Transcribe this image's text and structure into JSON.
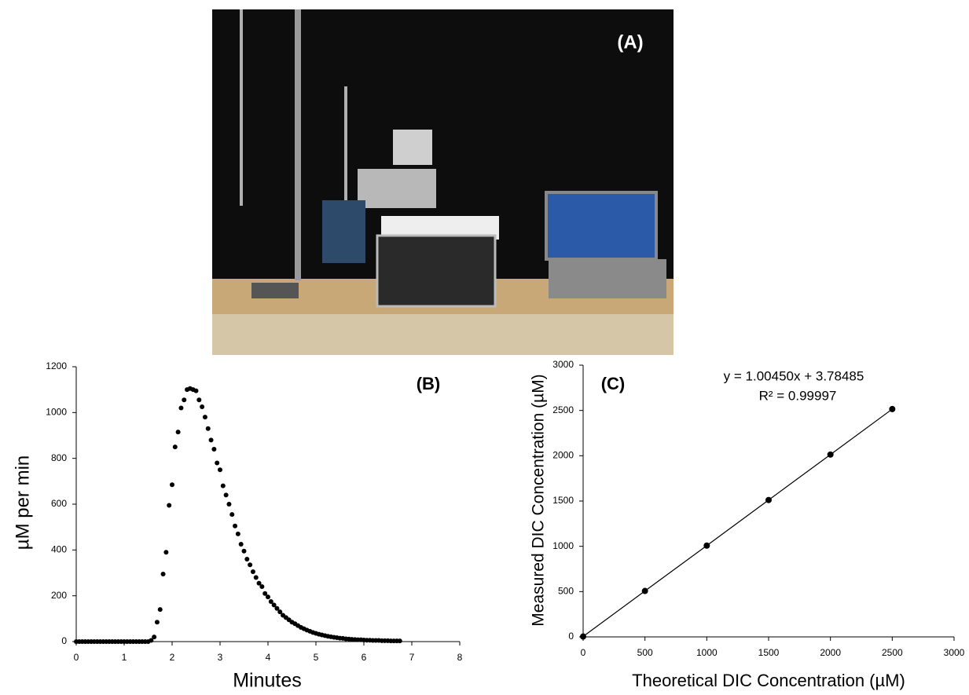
{
  "photo_label": "(A)",
  "chart_data": [
    {
      "type": "scatter",
      "annotation": "(B)",
      "xlabel": "Minutes",
      "ylabel": "µM per min",
      "color": "#000000",
      "line": false,
      "xlim": [
        0,
        8
      ],
      "xticks": [
        0,
        1,
        2,
        3,
        4,
        5,
        6,
        7,
        8
      ],
      "ylim": [
        0,
        1200
      ],
      "yticks": [
        0,
        200,
        400,
        600,
        800,
        1000,
        1200
      ],
      "x": [
        0,
        0.0625,
        0.125,
        0.1875,
        0.25,
        0.3125,
        0.375,
        0.4375,
        0.5,
        0.5625,
        0.625,
        0.6875,
        0.75,
        0.8125,
        0.875,
        0.9375,
        1,
        1.0625,
        1.125,
        1.1875,
        1.25,
        1.3125,
        1.375,
        1.4375,
        1.5,
        1.5625,
        1.625,
        1.6875,
        1.75,
        1.8125,
        1.875,
        1.9375,
        2,
        2.0625,
        2.125,
        2.1875,
        2.25,
        2.3125,
        2.375,
        2.4375,
        2.5,
        2.5625,
        2.625,
        2.6875,
        2.75,
        2.8125,
        2.875,
        2.9375,
        3,
        3.0625,
        3.125,
        3.1875,
        3.25,
        3.3125,
        3.375,
        3.4375,
        3.5,
        3.5625,
        3.625,
        3.6875,
        3.75,
        3.8125,
        3.875,
        3.9375,
        4,
        4.0625,
        4.125,
        4.1875,
        4.25,
        4.3125,
        4.375,
        4.4375,
        4.5,
        4.5625,
        4.625,
        4.6875,
        4.75,
        4.8125,
        4.875,
        4.9375,
        5,
        5.0625,
        5.125,
        5.1875,
        5.25,
        5.3125,
        5.375,
        5.4375,
        5.5,
        5.5625,
        5.625,
        5.6875,
        5.75,
        5.8125,
        5.875,
        5.9375,
        6,
        6.0625,
        6.125,
        6.1875,
        6.25,
        6.3125,
        6.375,
        6.4375,
        6.5,
        6.5625,
        6.625,
        6.6875,
        6.75
      ],
      "values": [
        0,
        0,
        0,
        0,
        0,
        0,
        0,
        0,
        0,
        0,
        0,
        0,
        0,
        0,
        0,
        0,
        0,
        0,
        0,
        0,
        0,
        0,
        0,
        0,
        0,
        5,
        20,
        85,
        140,
        295,
        390,
        595,
        685,
        850,
        915,
        1020,
        1055,
        1100,
        1105,
        1100,
        1095,
        1055,
        1025,
        980,
        930,
        880,
        840,
        780,
        750,
        680,
        640,
        600,
        555,
        505,
        470,
        425,
        395,
        360,
        335,
        305,
        280,
        255,
        240,
        210,
        195,
        175,
        160,
        145,
        130,
        115,
        105,
        95,
        85,
        78,
        70,
        62,
        56,
        50,
        45,
        40,
        36,
        32,
        29,
        26,
        23,
        21,
        19,
        17,
        15,
        14,
        12,
        11,
        10,
        9,
        8,
        8,
        7,
        6,
        6,
        5,
        5,
        5,
        4,
        4,
        4,
        3,
        3,
        3,
        3
      ]
    },
    {
      "type": "scatter",
      "annotation": "(C)",
      "equation": "y = 1.00450x + 3.78485",
      "r_squared": "R² = 0.99997",
      "xlabel": "Theoretical DIC Concentration (µM)",
      "ylabel": "Measured DIC Concentration (µM)",
      "color": "#000000",
      "line": true,
      "xlim": [
        0,
        3000
      ],
      "xticks": [
        0,
        500,
        1000,
        1500,
        2000,
        2500,
        3000
      ],
      "ylim": [
        0,
        3000
      ],
      "yticks": [
        0,
        500,
        1000,
        1500,
        2000,
        2500,
        3000
      ],
      "x": [
        0,
        500,
        1000,
        1500,
        2000,
        2500
      ],
      "values": [
        4,
        507,
        1008,
        1511,
        2013,
        2515
      ]
    }
  ]
}
